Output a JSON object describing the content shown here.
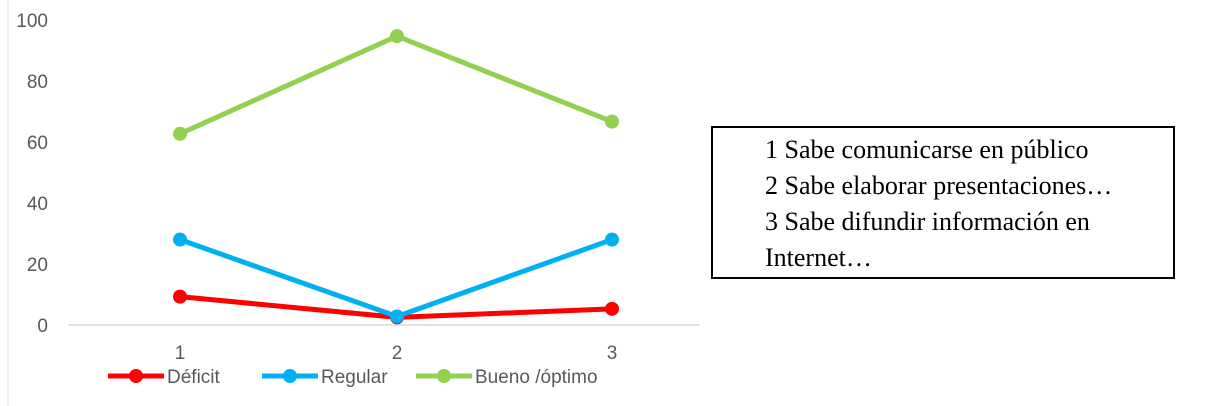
{
  "chart_data": {
    "type": "line",
    "categories": [
      "1",
      "2",
      "3"
    ],
    "ylim": [
      0,
      100
    ],
    "yticks": [
      "0",
      "20",
      "40",
      "60",
      "80",
      "100"
    ],
    "series": [
      {
        "name": "Déficit",
        "values": [
          9.3,
          2.5,
          5.3
        ],
        "color": "#FF0000"
      },
      {
        "name": "Regular",
        "values": [
          28,
          2.8,
          28
        ],
        "color": "#00B0F0"
      },
      {
        "name": "Bueno /óptimo",
        "values": [
          62.7,
          94.7,
          66.7
        ],
        "color": "#92D050"
      }
    ],
    "legend_position": "bottom",
    "grid": "horizontal-baseline-only"
  },
  "notes": [
    "1 Sabe comunicarse en público",
    "2 Sabe elaborar presentaciones…",
    "3 Sabe difundir información en Internet…"
  ]
}
